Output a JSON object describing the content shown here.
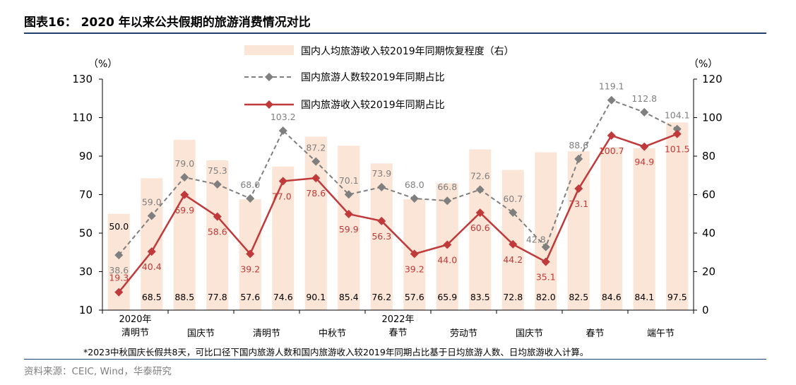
{
  "header": {
    "title": "图表16： 2020 年以来公共假期的旅游消费情况对比"
  },
  "footnote": "*2023中秋国庆长假共8天，可比口径下国内旅游人数和国内旅游收入较2019年同期占比基于日均旅游人数、日均旅游收入计算。",
  "source": "资料来源：CEIC, Wind，华泰研究",
  "chart_data": {
    "type": "bar+line",
    "y_left": {
      "unit_label": "（%）",
      "ylim": [
        10,
        130
      ],
      "ticks": [
        10,
        30,
        50,
        70,
        90,
        110,
        130
      ]
    },
    "y_right": {
      "unit_label": "（%）",
      "ylim": [
        0,
        120
      ],
      "ticks": [
        0,
        20,
        40,
        60,
        80,
        100,
        120
      ]
    },
    "x_group_labels": [
      {
        "index": 0,
        "lines": [
          "2020年",
          "清明节"
        ]
      },
      {
        "index": 2,
        "lines": [
          "国庆节"
        ]
      },
      {
        "index": 4,
        "lines": [
          "清明节"
        ]
      },
      {
        "index": 6,
        "lines": [
          "中秋节"
        ]
      },
      {
        "index": 8,
        "lines": [
          "2022年",
          "春节"
        ]
      },
      {
        "index": 10,
        "lines": [
          "劳动节"
        ]
      },
      {
        "index": 12,
        "lines": [
          "国庆节"
        ]
      },
      {
        "index": 14,
        "lines": [
          "春节"
        ]
      },
      {
        "index": 16,
        "lines": [
          "端午节"
        ]
      }
    ],
    "n_periods": 18,
    "series": [
      {
        "name": "国内人均旅游收入较2019年同期恢复程度（右）",
        "kind": "bar",
        "axis": "right",
        "color": "#fbe5d6",
        "values": [
          50.0,
          68.5,
          88.5,
          77.8,
          57.6,
          74.6,
          90.1,
          85.4,
          76.2,
          57.6,
          65.9,
          83.5,
          72.8,
          82.0,
          82.5,
          84.6,
          84.1,
          97.5
        ]
      },
      {
        "name": "国内旅游人数较2019年同期占比",
        "kind": "line",
        "axis": "left",
        "color": "#7f7f7f",
        "dashed": true,
        "marker": "diamond",
        "values": [
          38.6,
          59.0,
          79.0,
          75.3,
          68.0,
          103.2,
          87.2,
          70.1,
          73.9,
          68.0,
          66.8,
          72.6,
          60.7,
          42.8,
          88.6,
          119.1,
          112.8,
          104.1
        ]
      },
      {
        "name": "国内旅游收入较2019年同期占比",
        "kind": "line",
        "axis": "left",
        "color": "#c0393b",
        "dashed": false,
        "marker": "diamond",
        "values": [
          19.3,
          40.4,
          69.9,
          58.6,
          39.2,
          77.0,
          78.6,
          59.9,
          56.3,
          39.2,
          44.0,
          60.6,
          44.2,
          35.1,
          73.1,
          100.7,
          94.9,
          101.5
        ]
      }
    ]
  }
}
